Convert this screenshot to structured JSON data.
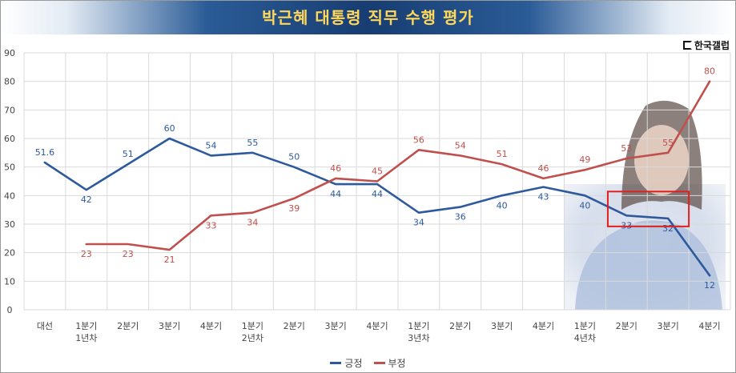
{
  "header": {
    "title": "박근혜 대통령 직무 수행 평가"
  },
  "logo": {
    "text": "한국갤럽",
    "icon": "gallup-logo-icon"
  },
  "colors": {
    "positive": "#2e5a9c",
    "negative": "#c0504d",
    "grid": "#d9d9d9",
    "highlight": "#e02020"
  },
  "chart_data": {
    "type": "line",
    "title": "박근혜 대통령 직무 수행 평가",
    "categories": [
      "대선",
      "1분기\n1년차",
      "2분기",
      "3분기",
      "4분기",
      "1분기\n2년차",
      "2분기",
      "3분기",
      "4분기",
      "1분기\n3년차",
      "2분기",
      "3분기",
      "4분기",
      "1분기\n4년차",
      "2분기",
      "3분기",
      "4분기"
    ],
    "series": [
      {
        "name": "긍정",
        "color": "#2e5a9c",
        "values": [
          51.6,
          42,
          51,
          60,
          54,
          55,
          50,
          44,
          44,
          34,
          36,
          40,
          43,
          40,
          33,
          32,
          12
        ],
        "labels": [
          "51.6",
          "42",
          "51",
          "60",
          "54",
          "55",
          "50",
          "44",
          "44",
          "34",
          "36",
          "40",
          "43",
          "40",
          "33",
          "32",
          "12"
        ]
      },
      {
        "name": "부정",
        "color": "#c0504d",
        "values": [
          null,
          23,
          23,
          21,
          33,
          34,
          39,
          46,
          45,
          56,
          54,
          51,
          46,
          49,
          53,
          55,
          80
        ],
        "labels": [
          "",
          "23",
          "23",
          "21",
          "33",
          "34",
          "39",
          "46",
          "45",
          "56",
          "54",
          "51",
          "46",
          "49",
          "53",
          "55",
          "80"
        ]
      }
    ],
    "ylim": [
      0,
      90
    ],
    "yticks": [
      "0",
      "10",
      "20",
      "30",
      "40",
      "50",
      "60",
      "70",
      "80",
      "90"
    ],
    "grid": true,
    "legend": "bottom",
    "highlight": {
      "series": "긍정",
      "from_index": 14,
      "to_index": 15
    }
  }
}
